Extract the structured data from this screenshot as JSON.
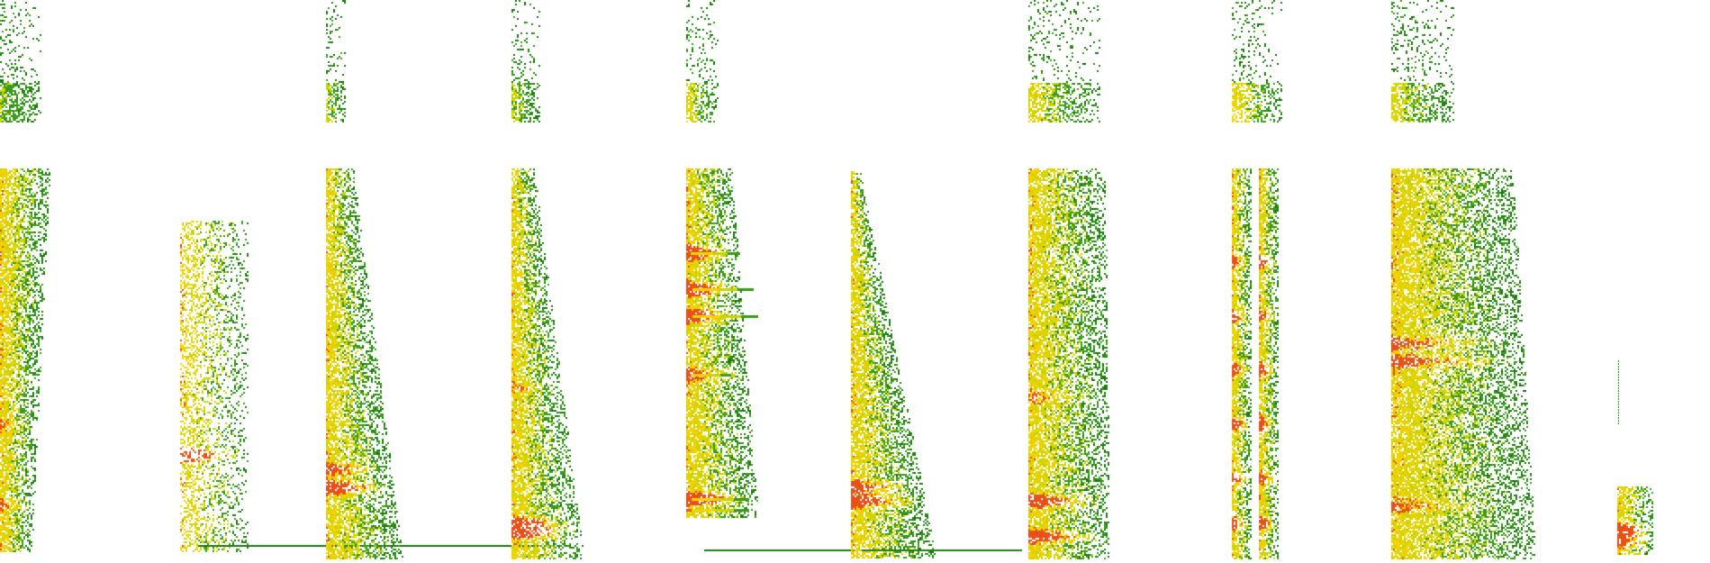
{
  "image": {
    "description_kind": "spectrogram-strips",
    "background": "#ffffff",
    "palette": {
      "low": "#1f7a12",
      "mid_low": "#3c9a1e",
      "mid": "#c9d400",
      "high": "#f2d200",
      "peak": "#e8501a"
    },
    "strip_count": 12
  }
}
